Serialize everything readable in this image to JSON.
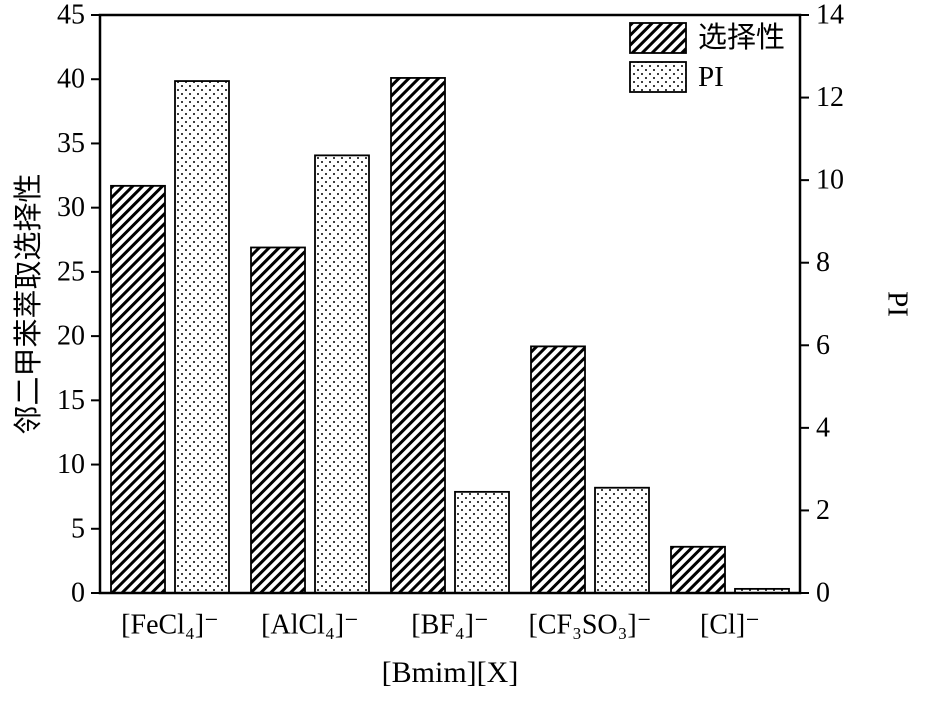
{
  "chart_data": {
    "type": "bar",
    "categories": [
      "[FeCl₄]⁻",
      "[AlCl₄]⁻",
      "[BF₄]⁻",
      "[CF₃SO₃]⁻",
      "[Cl]⁻"
    ],
    "series": [
      {
        "name": "选择性",
        "axis": "left",
        "pattern": "hatch",
        "values": [
          31.7,
          26.9,
          40.1,
          19.2,
          3.6
        ]
      },
      {
        "name": "PI",
        "axis": "right",
        "pattern": "dots",
        "values": [
          12.4,
          10.6,
          2.45,
          2.55,
          0.1
        ]
      }
    ],
    "xlabel": "[Bmim][X]",
    "ylabel_left": "邻二甲苯萃取选择性",
    "ylabel_right": "PI",
    "ylim_left": [
      0,
      45
    ],
    "ytick_step_left": 5,
    "ylim_right": [
      0,
      14
    ],
    "ytick_step_right": 2,
    "legend_position": "top-right",
    "grid": false,
    "colors": {
      "bar_fill": "#ffffff",
      "bar_stroke": "#000000",
      "axis": "#000000",
      "background": "#ffffff"
    }
  }
}
